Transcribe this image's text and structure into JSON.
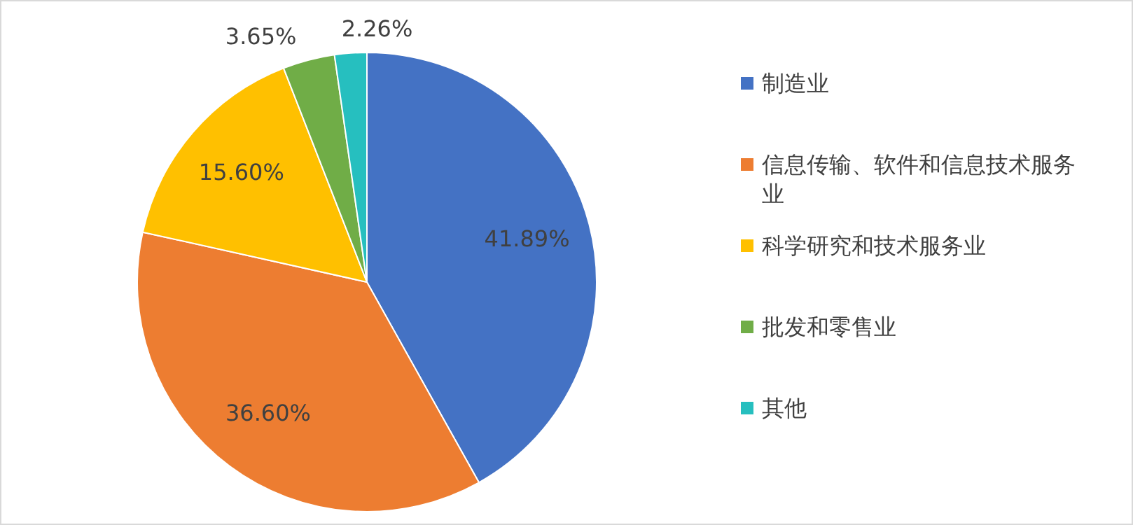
{
  "chart_data": {
    "type": "pie",
    "categories": [
      "制造业",
      "信息传输、软件和信息技术服务业",
      "科学研究和技术服务业",
      "批发和零售业",
      "其他"
    ],
    "values": [
      41.89,
      36.6,
      15.6,
      3.65,
      2.26
    ],
    "colors": [
      "#4472c4",
      "#ed7d31",
      "#ffc000",
      "#70ad47",
      "#26bfbf"
    ],
    "value_labels": [
      "41.89%",
      "36.60%",
      "15.60%",
      "3.65%",
      "2.26%"
    ],
    "legend": "right"
  }
}
